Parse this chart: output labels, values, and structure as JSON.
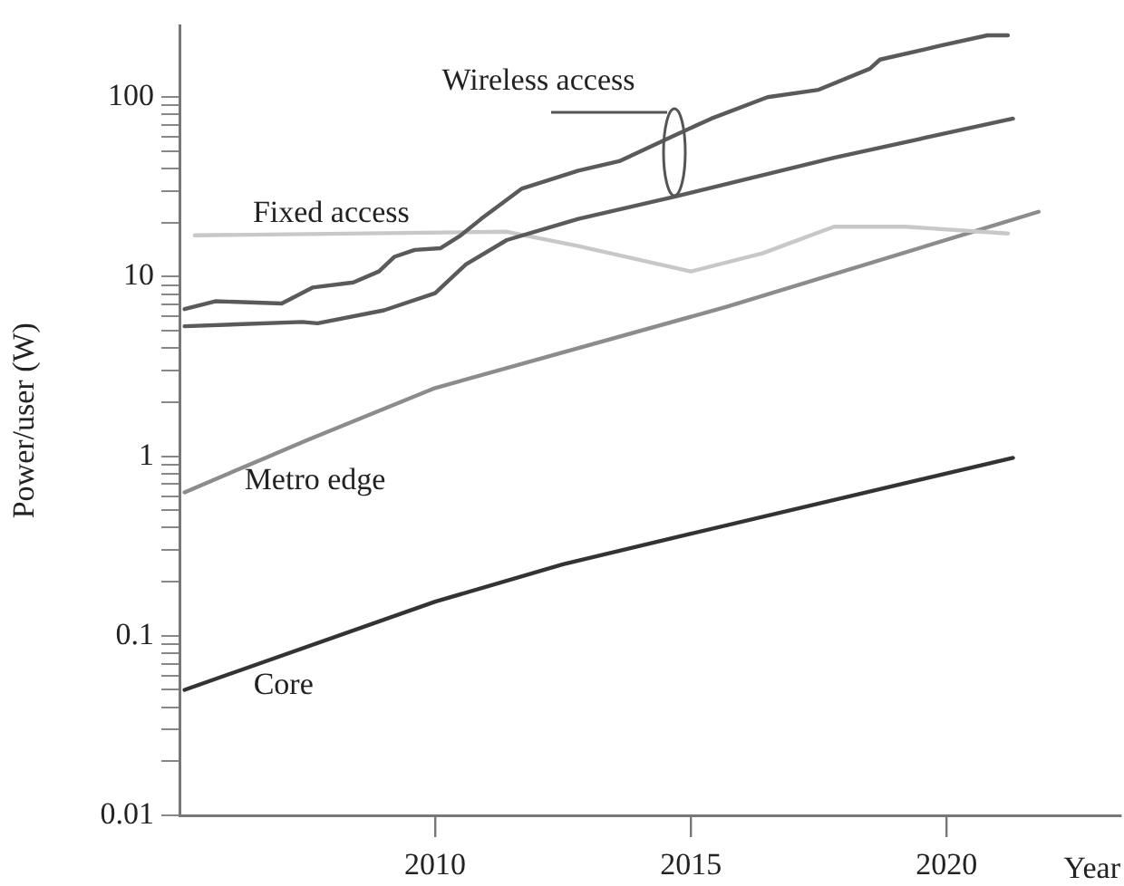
{
  "chart_data": {
    "type": "line",
    "xlabel": "Year",
    "ylabel": "Power/user (W)",
    "log": "y",
    "grid": false,
    "legend": false,
    "marker": "none",
    "line_style": "solid",
    "xlim": [
      2005,
      2023.4
    ],
    "xticks": [
      2010,
      2015,
      2020
    ],
    "ylim": [
      0.01,
      250
    ],
    "yticks": [
      0.01,
      {
        "value": 0.02,
        "label": null
      },
      {
        "value": 0.03,
        "label": null
      },
      {
        "value": 0.04,
        "label": null
      },
      {
        "value": 0.05,
        "label": null
      },
      {
        "value": 0.06,
        "label": null
      },
      {
        "value": 0.07,
        "label": null
      },
      {
        "value": 0.08,
        "label": null
      },
      {
        "value": 0.09,
        "label": null
      },
      0.1,
      {
        "value": 0.2,
        "label": null
      },
      {
        "value": 0.3,
        "label": null
      },
      {
        "value": 0.4,
        "label": null
      },
      {
        "value": 0.5,
        "label": null
      },
      {
        "value": 0.6,
        "label": null
      },
      {
        "value": 0.7,
        "label": null
      },
      {
        "value": 0.8,
        "label": null
      },
      {
        "value": 0.9,
        "label": null
      },
      1,
      {
        "value": 2,
        "label": null
      },
      {
        "value": 3,
        "label": null
      },
      {
        "value": 4,
        "label": null
      },
      {
        "value": 5,
        "label": null
      },
      {
        "value": 6,
        "label": null
      },
      {
        "value": 7,
        "label": null
      },
      {
        "value": 8,
        "label": null
      },
      {
        "value": 9,
        "label": null
      },
      10,
      {
        "value": 20,
        "label": null
      },
      {
        "value": 30,
        "label": null
      },
      {
        "value": 40,
        "label": null
      },
      {
        "value": 50,
        "label": null
      },
      {
        "value": 60,
        "label": null
      },
      {
        "value": 70,
        "label": null
      },
      {
        "value": 80,
        "label": null
      },
      {
        "value": 90,
        "label": null
      },
      100
    ],
    "annotations": [
      "Wireless access"
    ],
    "series": [
      {
        "color": "#5a5a5a",
        "x": [
          2005.1,
          2005.7,
          2007.0,
          2007.6,
          2008.4,
          2008.9,
          2009.2,
          2009.6,
          2010.1,
          2010.5,
          2010.9,
          2011.7,
          2012.8,
          2013.6,
          2014.5,
          2015.4,
          2016.5,
          2017.5,
          2018.5,
          2018.7,
          2019.9,
          2020.8,
          2021.2
        ],
        "values": [
          6.6,
          7.3,
          7.1,
          8.7,
          9.3,
          10.7,
          12.9,
          14.1,
          14.4,
          17,
          21,
          31,
          39,
          44,
          58,
          76,
          100,
          110,
          144,
          162,
          194,
          221,
          221
        ]
      },
      {
        "color": "#5a5a5a",
        "x": [
          2005.1,
          2007.4,
          2007.7,
          2009.0,
          2010.0,
          2010.6,
          2011.4,
          2012.8,
          2014.7,
          2017.8,
          2021.3
        ],
        "values": [
          5.3,
          5.6,
          5.5,
          6.5,
          8.1,
          11.7,
          16,
          21,
          28,
          46,
          76
        ]
      },
      {
        "name": "Fixed access",
        "color": "#c8c8c8",
        "x": [
          2005.3,
          2011.4,
          2012.8,
          2015.0,
          2016.4,
          2017.8,
          2019.2,
          2021.2
        ],
        "values": [
          17,
          17.8,
          14.8,
          10.7,
          13.5,
          19,
          19,
          17.4
        ]
      },
      {
        "name": "Metro edge",
        "color": "#8c8c8c",
        "x": [
          2005.1,
          2007.5,
          2010.0,
          2015.7,
          2021.8
        ],
        "values": [
          0.63,
          1.23,
          2.4,
          6.8,
          23
        ]
      },
      {
        "name": "Core",
        "color": "#333333",
        "x": [
          2005.1,
          2010.0,
          2012.5,
          2015.0,
          2021.3
        ],
        "values": [
          0.05,
          0.155,
          0.25,
          0.37,
          0.98
        ]
      }
    ]
  }
}
